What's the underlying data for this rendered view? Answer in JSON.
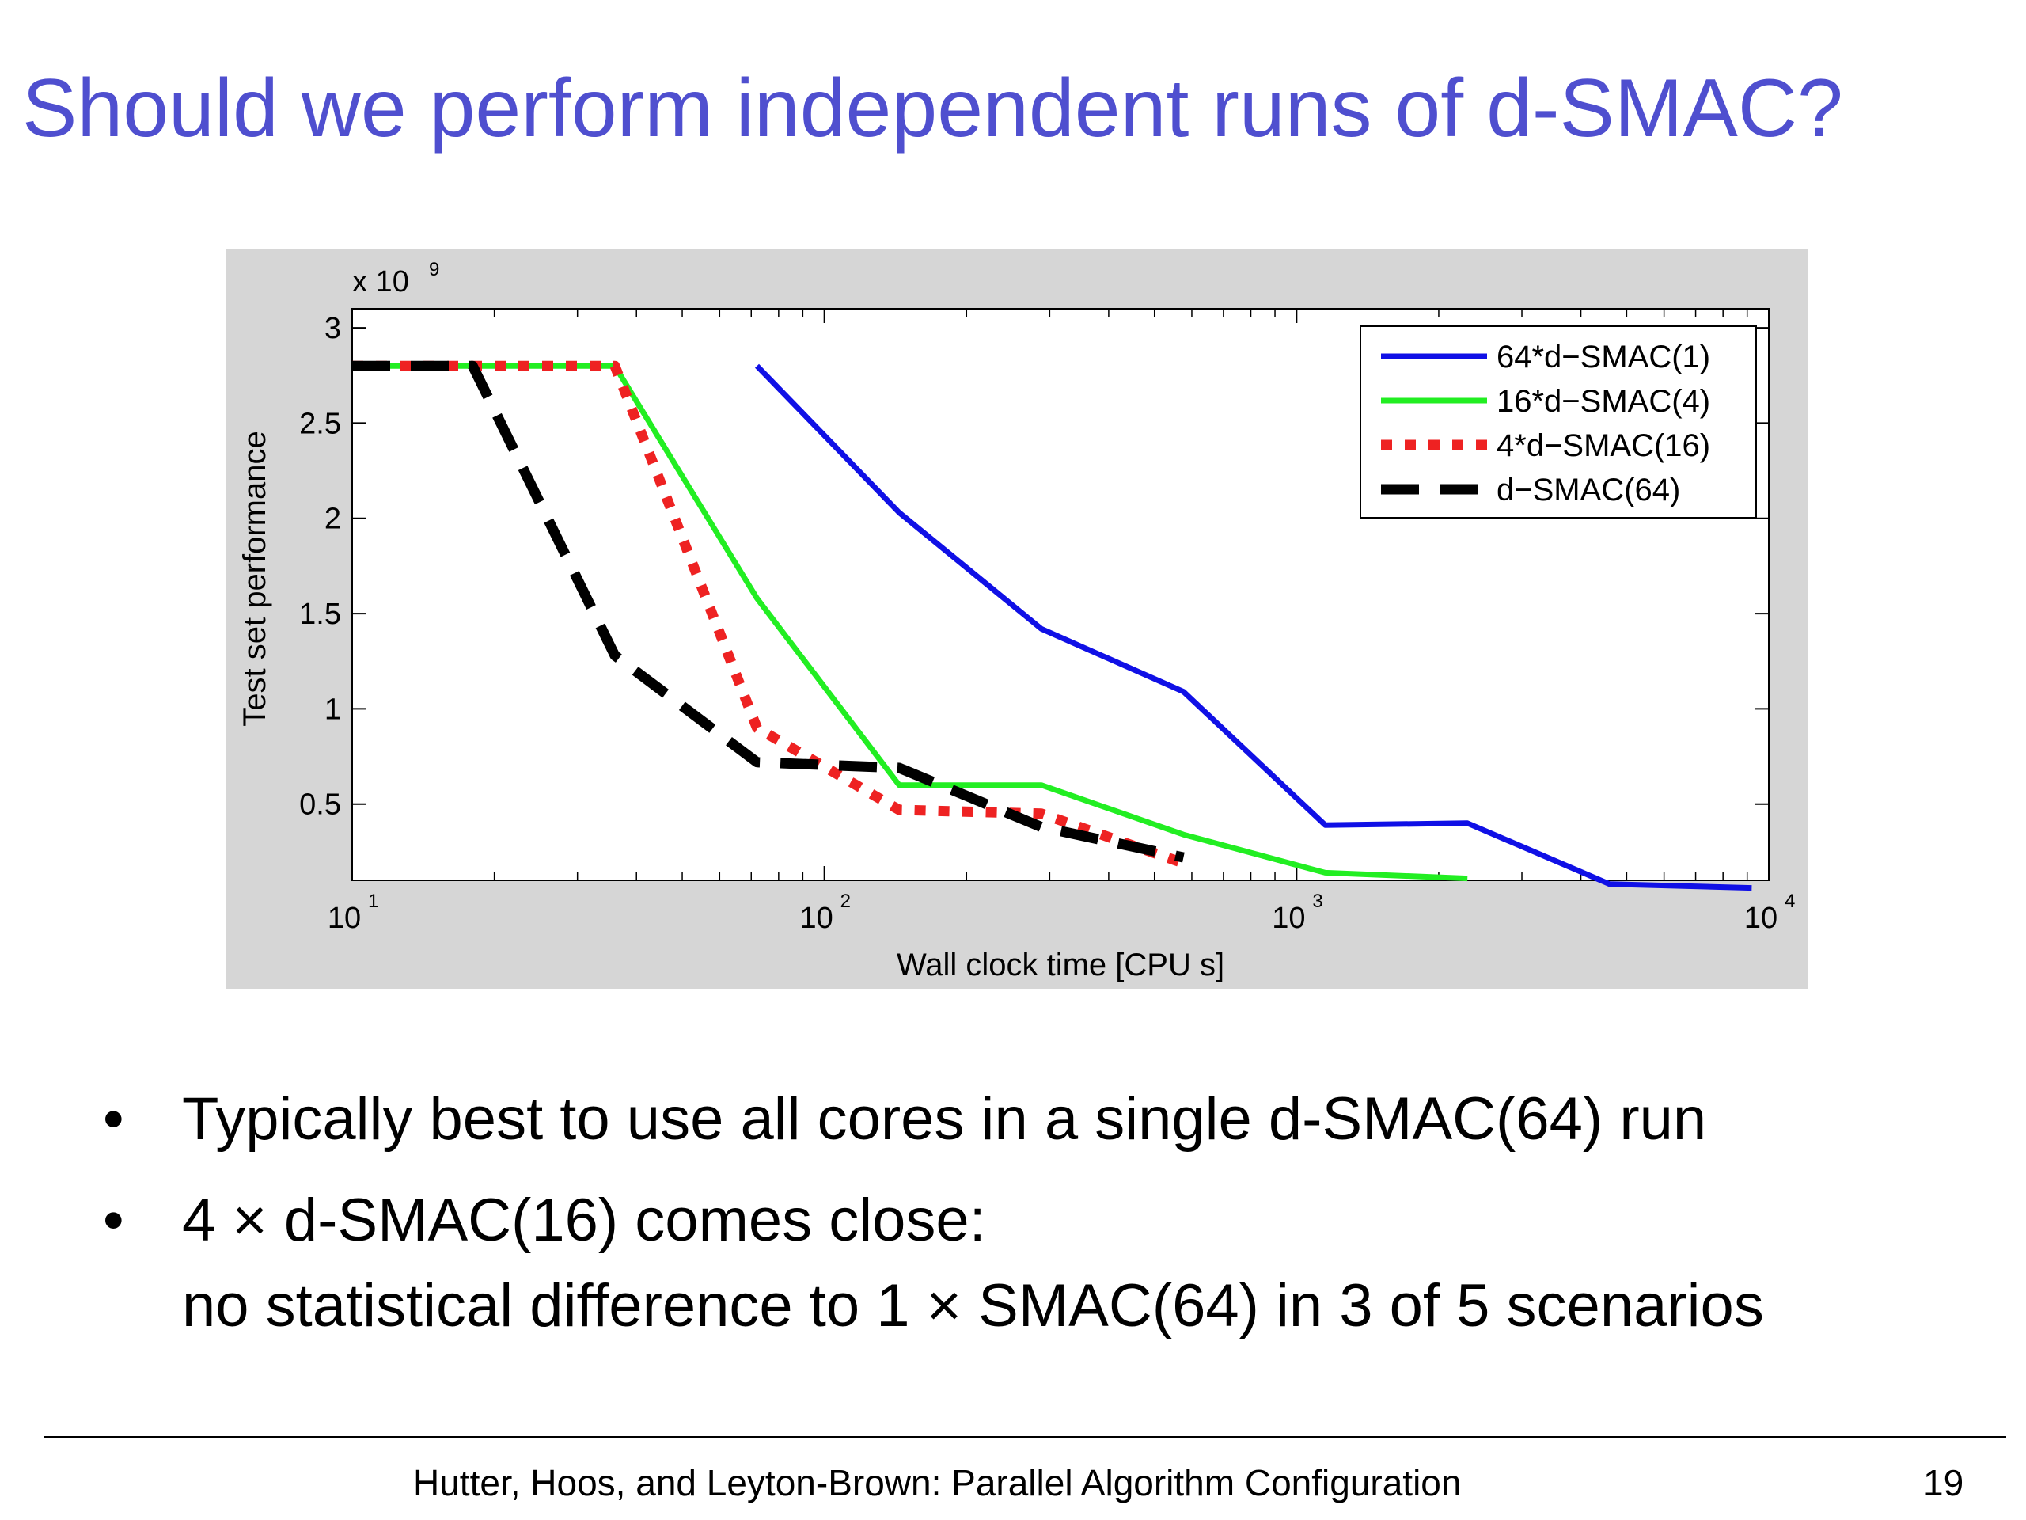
{
  "slide": {
    "title": "Should we perform independent runs of d-SMAC?",
    "bullets": [
      {
        "marker": "•",
        "lines": [
          "Typically best to use all cores in a single d-SMAC(64) run"
        ]
      },
      {
        "marker": "•",
        "lines": [
          "4 × d-SMAC(16) comes close:",
          "no statistical difference to 1 × SMAC(64) in 3 of 5 scenarios"
        ]
      }
    ],
    "footer": "Hutter, Hoos, and Leyton-Brown: Parallel Algorithm Configuration",
    "page_number": "19"
  },
  "chart_data": {
    "type": "line",
    "title": "",
    "xlabel": "Wall clock time [CPU s]",
    "ylabel": "Test set performance",
    "y_multiplier": "x 10^9",
    "x_scale": "log",
    "xlim": [
      10,
      10000
    ],
    "ylim": [
      0.1,
      3.1
    ],
    "x_ticks": [
      10,
      100,
      1000,
      10000
    ],
    "x_tick_labels": [
      {
        "base": "10",
        "exp": "1"
      },
      {
        "base": "10",
        "exp": "2"
      },
      {
        "base": "10",
        "exp": "3"
      },
      {
        "base": "10",
        "exp": "4"
      }
    ],
    "y_ticks": [
      0.5,
      1,
      1.5,
      2,
      2.5,
      3
    ],
    "y_tick_labels": [
      "0.5",
      "1",
      "1.5",
      "2",
      "2.5",
      "3"
    ],
    "legend_position": "top-right",
    "grid": false,
    "series": [
      {
        "name": "64*d−SMAC(1)",
        "color": "#1010e6",
        "dash": "solid",
        "x": [
          72,
          144,
          288,
          576,
          1150,
          2300,
          4600,
          9200
        ],
        "y": [
          2.8,
          2.03,
          1.42,
          1.09,
          0.39,
          0.4,
          0.08,
          0.06
        ]
      },
      {
        "name": "16*d−SMAC(4)",
        "color": "#22ee22",
        "dash": "solid",
        "x": [
          10,
          36,
          72,
          144,
          288,
          576,
          1150,
          2300
        ],
        "y": [
          2.8,
          2.8,
          1.58,
          0.6,
          0.6,
          0.34,
          0.14,
          0.11
        ]
      },
      {
        "name": "4*d−SMAC(16)",
        "color": "#ee2222",
        "dash": "dotted",
        "x": [
          10,
          36,
          72,
          144,
          288,
          576
        ],
        "y": [
          2.8,
          2.8,
          0.9,
          0.47,
          0.45,
          0.19
        ]
      },
      {
        "name": "d−SMAC(64)",
        "color": "#000000",
        "dash": "dashed",
        "x": [
          10,
          18,
          36,
          72,
          144,
          288,
          576
        ],
        "y": [
          2.8,
          2.8,
          1.28,
          0.72,
          0.69,
          0.38,
          0.22
        ]
      }
    ]
  }
}
